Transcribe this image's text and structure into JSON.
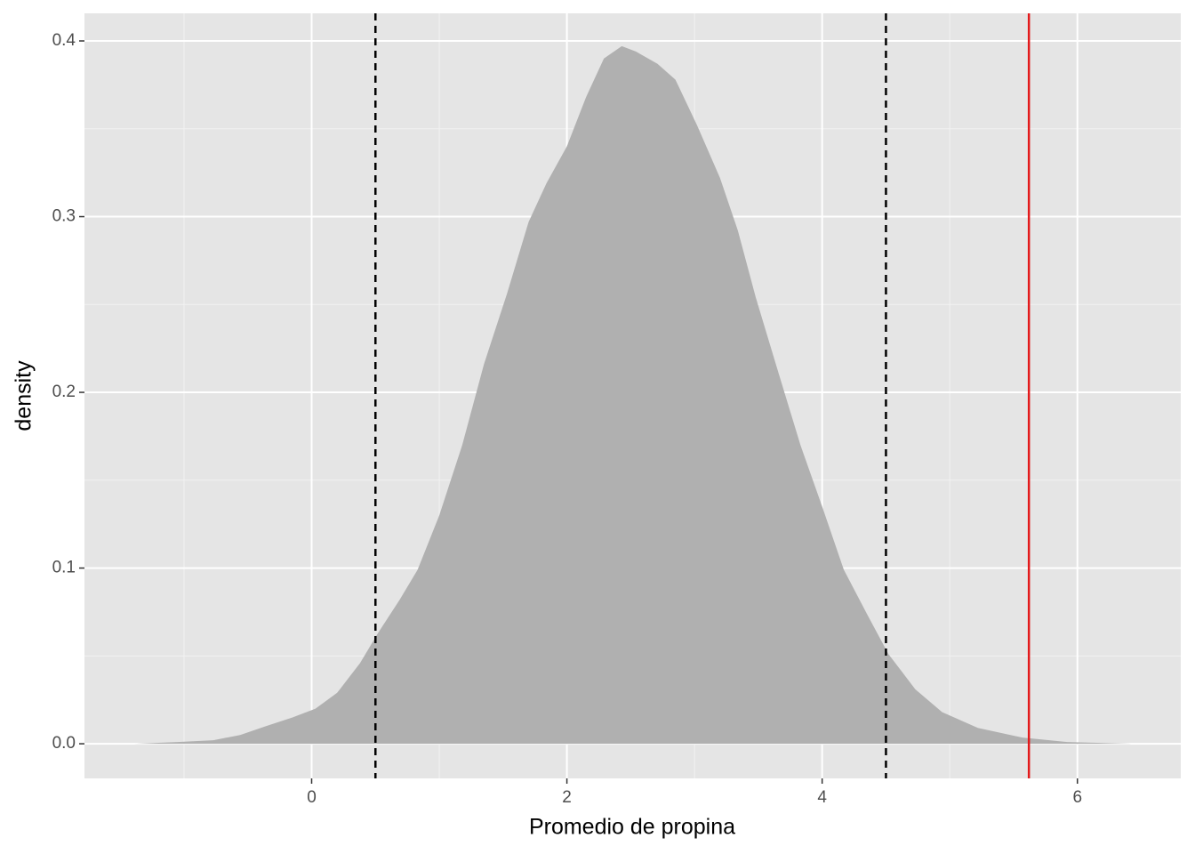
{
  "chart_data": {
    "type": "density",
    "x_label": "Promedio de propina",
    "y_label": "density",
    "x": [
      -1.39,
      -1.05,
      -0.77,
      -0.56,
      -0.36,
      -0.15,
      0.03,
      0.2,
      0.38,
      0.52,
      0.69,
      0.83,
      1.0,
      1.18,
      1.35,
      1.53,
      1.7,
      1.84,
      2.0,
      2.15,
      2.29,
      2.43,
      2.54,
      2.71,
      2.85,
      3.02,
      3.2,
      3.34,
      3.48,
      3.65,
      3.83,
      4.0,
      4.17,
      4.35,
      4.52,
      4.73,
      4.94,
      5.22,
      5.57,
      5.92,
      6.42
    ],
    "values": [
      0,
      0.001,
      0.002,
      0.005,
      0.01,
      0.015,
      0.02,
      0.029,
      0.046,
      0.063,
      0.082,
      0.099,
      0.13,
      0.17,
      0.216,
      0.256,
      0.297,
      0.319,
      0.34,
      0.368,
      0.39,
      0.397,
      0.394,
      0.387,
      0.378,
      0.352,
      0.322,
      0.292,
      0.254,
      0.213,
      0.17,
      0.135,
      0.099,
      0.074,
      0.051,
      0.031,
      0.018,
      0.009,
      0.0035,
      0.001,
      0
    ],
    "color": "#b0b0b0",
    "vlines": [
      {
        "x": 0.5,
        "color": "#000000",
        "dashed": true
      },
      {
        "x": 4.5,
        "color": "#000000",
        "dashed": true
      },
      {
        "x": 5.62,
        "color": "#e31a1c",
        "dashed": false
      }
    ],
    "xlim": [
      -1.78,
      6.81
    ],
    "ylim": [
      -0.0197,
      0.4157
    ],
    "xticks": [
      0,
      2,
      4,
      6
    ],
    "yticks": [
      {
        "value": 0,
        "label": "0.0"
      },
      {
        "value": 0.1,
        "label": "0.1"
      },
      {
        "value": 0.2,
        "label": "0.2"
      },
      {
        "value": 0.3,
        "label": "0.3"
      },
      {
        "value": 0.4,
        "label": "0.4"
      }
    ],
    "grid": true
  }
}
